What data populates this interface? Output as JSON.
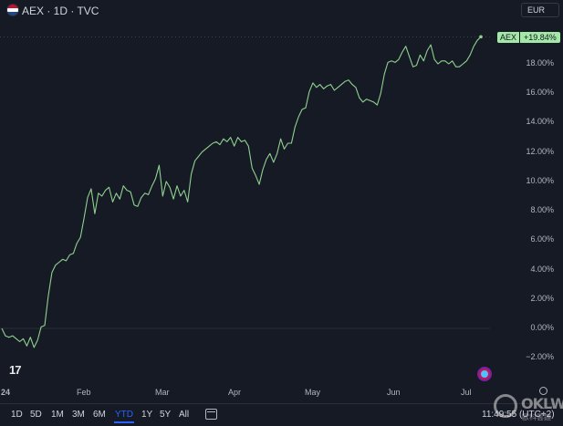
{
  "header": {
    "title": "AEX · 1D · TVC",
    "currency": "EUR"
  },
  "price_badge": {
    "symbol": "AEX",
    "value": "+19.84%"
  },
  "colors": {
    "line": "#8fd18f",
    "badge": "#a3e8a6",
    "background": "#161a25",
    "active": "#2962ff",
    "grid": "#2a2e39"
  },
  "chart_data": {
    "type": "line",
    "title": "",
    "xlabel": "",
    "ylabel": "",
    "ylim": [
      -2.5,
      20.5
    ],
    "x_ticks": [
      "24",
      "Feb",
      "Mar",
      "Apr",
      "May",
      "Jun",
      "Jul"
    ],
    "y_ticks": [
      "−2.00%",
      "0.00%",
      "2.00%",
      "4.00%",
      "6.00%",
      "8.00%",
      "10.00%",
      "12.00%",
      "14.00%",
      "16.00%",
      "18.00%"
    ],
    "y_tick_values": [
      -2,
      0,
      2,
      4,
      6,
      8,
      10,
      12,
      14,
      16,
      18
    ],
    "series": [
      {
        "values": [
          0.0,
          -0.5,
          -0.6,
          -0.5,
          -0.7,
          -0.9,
          -0.7,
          -1.2,
          -0.6,
          -1.3,
          -0.8,
          0.1,
          0.2,
          2.2,
          3.8,
          4.3,
          4.5,
          4.7,
          4.6,
          5.0,
          5.1,
          5.8,
          6.2,
          7.5,
          8.9,
          9.5,
          7.8,
          9.2,
          9.0,
          9.4,
          9.6,
          8.6,
          9.2,
          8.8,
          9.7,
          9.4,
          9.3,
          8.4,
          8.3,
          8.9,
          9.2,
          9.1,
          9.7,
          10.2,
          11.1,
          9.0,
          10.0,
          9.6,
          8.8,
          9.7,
          9.0,
          9.4,
          8.6,
          10.5,
          11.4,
          11.7,
          12.0,
          12.2,
          12.4,
          12.6,
          12.7,
          12.5,
          12.9,
          12.7,
          13.0,
          12.4,
          13.0,
          12.7,
          12.8,
          12.4,
          10.9,
          10.4,
          9.8,
          10.8,
          11.5,
          11.9,
          11.3,
          11.9,
          12.9,
          12.2,
          12.6,
          12.6,
          13.7,
          14.4,
          14.9,
          15.0,
          16.1,
          16.7,
          16.4,
          16.6,
          16.3,
          16.5,
          16.6,
          16.2,
          16.4,
          16.6,
          16.8,
          16.9,
          16.6,
          16.4,
          15.7,
          15.4,
          15.6,
          15.5,
          15.4,
          15.2,
          16.0,
          17.3,
          18.1,
          18.2,
          18.1,
          18.3,
          18.8,
          19.2,
          18.5,
          17.8,
          17.9,
          18.6,
          18.2,
          18.9,
          19.3,
          18.3,
          18.0,
          18.2,
          18.2,
          18.0,
          18.2,
          17.8,
          17.8,
          18.0,
          18.2,
          18.6,
          19.2,
          19.6,
          19.84
        ]
      }
    ]
  },
  "toolbar": {
    "ranges": [
      "1D",
      "5D",
      "1M",
      "3M",
      "6M",
      "YTD",
      "1Y",
      "5Y",
      "All"
    ],
    "active": "YTD",
    "clock": "11:49:55 (UTC+2)"
  },
  "watermark": {
    "text": "OKLW",
    "sub": "歐科雲鏈"
  }
}
